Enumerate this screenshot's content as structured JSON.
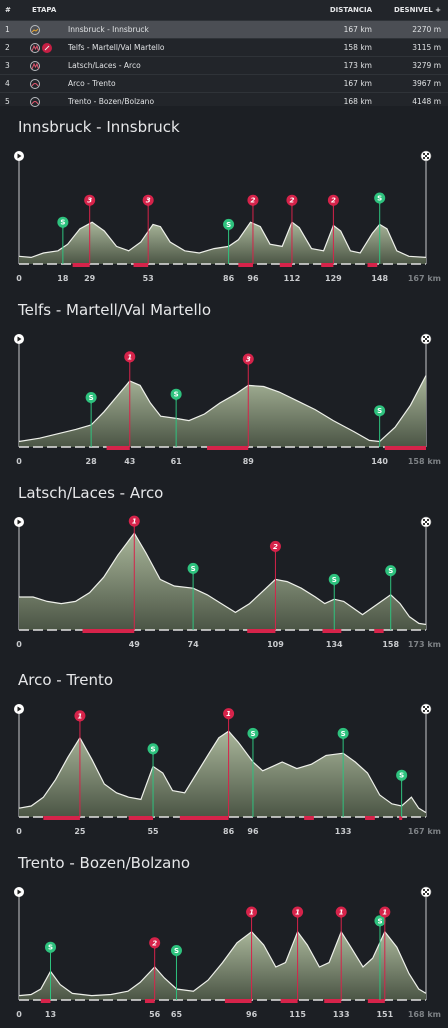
{
  "table": {
    "headers": {
      "num": "#",
      "stage": "ETAPA",
      "distance": "DISTANCIA",
      "elevation": "DESNIVEL +"
    },
    "rows": [
      {
        "num": "1",
        "name": "Innsbruck - Innsbruck",
        "distance": "167 km",
        "elevation": "2270 m",
        "icons": [
          "profile-flat-icon"
        ],
        "selected": true
      },
      {
        "num": "2",
        "name": "Telfs - Martell/Val Martello",
        "distance": "158 km",
        "elevation": "3115 m",
        "icons": [
          "profile-mountain-icon",
          "summit-finish-icon"
        ],
        "selected": false
      },
      {
        "num": "3",
        "name": "Latsch/Laces - Arco",
        "distance": "173 km",
        "elevation": "3279 m",
        "icons": [
          "profile-mountain-icon"
        ],
        "selected": false
      },
      {
        "num": "4",
        "name": "Arco - Trento",
        "distance": "167 km",
        "elevation": "3967 m",
        "icons": [
          "profile-hilly-icon"
        ],
        "selected": false
      },
      {
        "num": "5",
        "name": "Trento - Bozen/Bolzano",
        "distance": "168 km",
        "elevation": "4148 m",
        "icons": [
          "profile-hilly-icon"
        ],
        "selected": false
      }
    ]
  },
  "colors": {
    "kom": "#d6234a",
    "sprint": "#2ec27e",
    "profile_fill": "#7c8a70",
    "background": "#1c1f24"
  },
  "stages": [
    {
      "title": "Innsbruck - Innsbruck",
      "total": 167,
      "total_label": "167 km",
      "ticks": [
        "0",
        "18",
        "29",
        "53",
        "86",
        "96",
        "112",
        "129",
        "148"
      ],
      "tick_km": [
        0,
        18,
        29,
        53,
        86,
        96,
        112,
        129,
        148
      ],
      "profile": [
        [
          0,
          0.07
        ],
        [
          5,
          0.06
        ],
        [
          10,
          0.1
        ],
        [
          16,
          0.12
        ],
        [
          20,
          0.18
        ],
        [
          25,
          0.32
        ],
        [
          30,
          0.38
        ],
        [
          35,
          0.3
        ],
        [
          40,
          0.16
        ],
        [
          45,
          0.12
        ],
        [
          50,
          0.2
        ],
        [
          55,
          0.36
        ],
        [
          58,
          0.34
        ],
        [
          62,
          0.2
        ],
        [
          68,
          0.12
        ],
        [
          74,
          0.1
        ],
        [
          80,
          0.14
        ],
        [
          86,
          0.16
        ],
        [
          90,
          0.22
        ],
        [
          95,
          0.38
        ],
        [
          99,
          0.34
        ],
        [
          103,
          0.18
        ],
        [
          108,
          0.16
        ],
        [
          112,
          0.38
        ],
        [
          115,
          0.33
        ],
        [
          120,
          0.14
        ],
        [
          125,
          0.12
        ],
        [
          129,
          0.35
        ],
        [
          132,
          0.3
        ],
        [
          136,
          0.12
        ],
        [
          140,
          0.1
        ],
        [
          145,
          0.28
        ],
        [
          148,
          0.36
        ],
        [
          151,
          0.32
        ],
        [
          155,
          0.12
        ],
        [
          160,
          0.07
        ],
        [
          167,
          0.06
        ]
      ],
      "markers": [
        {
          "km": 18,
          "type": "sprint",
          "label": "S",
          "h": 0.38
        },
        {
          "km": 29,
          "type": "kom",
          "label": "3",
          "h": 0.58
        },
        {
          "km": 53,
          "type": "kom",
          "label": "3",
          "h": 0.58
        },
        {
          "km": 86,
          "type": "sprint",
          "label": "S",
          "h": 0.36
        },
        {
          "km": 96,
          "type": "kom",
          "label": "2",
          "h": 0.58
        },
        {
          "km": 112,
          "type": "kom",
          "label": "2",
          "h": 0.58
        },
        {
          "km": 129,
          "type": "kom",
          "label": "2",
          "h": 0.58
        },
        {
          "km": 148,
          "type": "sprint",
          "label": "S",
          "h": 0.6
        }
      ],
      "climbs": [
        [
          22,
          29
        ],
        [
          47,
          53
        ],
        [
          90,
          96
        ],
        [
          107,
          112
        ],
        [
          124,
          129
        ],
        [
          143,
          147
        ]
      ]
    },
    {
      "title": "Telfs - Martell/Val Martello",
      "total": 158,
      "total_label": "158 km",
      "ticks": [
        "0",
        "28",
        "43",
        "61",
        "89",
        "140"
      ],
      "tick_km": [
        0,
        28,
        43,
        61,
        89,
        140
      ],
      "profile": [
        [
          0,
          0.05
        ],
        [
          8,
          0.08
        ],
        [
          15,
          0.12
        ],
        [
          22,
          0.16
        ],
        [
          28,
          0.2
        ],
        [
          33,
          0.32
        ],
        [
          38,
          0.46
        ],
        [
          43,
          0.6
        ],
        [
          47,
          0.56
        ],
        [
          51,
          0.4
        ],
        [
          55,
          0.28
        ],
        [
          61,
          0.26
        ],
        [
          66,
          0.24
        ],
        [
          72,
          0.3
        ],
        [
          78,
          0.4
        ],
        [
          84,
          0.48
        ],
        [
          89,
          0.56
        ],
        [
          95,
          0.55
        ],
        [
          101,
          0.5
        ],
        [
          108,
          0.42
        ],
        [
          115,
          0.34
        ],
        [
          122,
          0.24
        ],
        [
          130,
          0.14
        ],
        [
          136,
          0.06
        ],
        [
          140,
          0.05
        ],
        [
          146,
          0.18
        ],
        [
          152,
          0.38
        ],
        [
          158,
          0.65
        ]
      ],
      "markers": [
        {
          "km": 28,
          "type": "sprint",
          "label": "S",
          "h": 0.45
        },
        {
          "km": 43,
          "type": "kom",
          "label": "1",
          "h": 0.82
        },
        {
          "km": 61,
          "type": "sprint",
          "label": "S",
          "h": 0.48
        },
        {
          "km": 89,
          "type": "kom",
          "label": "3",
          "h": 0.8
        },
        {
          "km": 140,
          "type": "sprint",
          "label": "S",
          "h": 0.33
        }
      ],
      "climbs": [
        [
          34,
          43
        ],
        [
          73,
          89
        ],
        [
          142,
          158
        ]
      ]
    },
    {
      "title": "Latsch/Laces - Arco",
      "total": 173,
      "total_label": "173 km",
      "ticks": [
        "0",
        "49",
        "74",
        "109",
        "134",
        "158"
      ],
      "tick_km": [
        0,
        49,
        74,
        109,
        134,
        158
      ],
      "profile": [
        [
          0,
          0.3
        ],
        [
          6,
          0.3
        ],
        [
          12,
          0.26
        ],
        [
          18,
          0.24
        ],
        [
          24,
          0.26
        ],
        [
          30,
          0.34
        ],
        [
          36,
          0.48
        ],
        [
          42,
          0.68
        ],
        [
          49,
          0.88
        ],
        [
          54,
          0.7
        ],
        [
          60,
          0.46
        ],
        [
          66,
          0.4
        ],
        [
          74,
          0.38
        ],
        [
          80,
          0.32
        ],
        [
          86,
          0.24
        ],
        [
          92,
          0.16
        ],
        [
          98,
          0.24
        ],
        [
          104,
          0.36
        ],
        [
          109,
          0.46
        ],
        [
          114,
          0.44
        ],
        [
          120,
          0.38
        ],
        [
          126,
          0.3
        ],
        [
          130,
          0.24
        ],
        [
          134,
          0.28
        ],
        [
          138,
          0.26
        ],
        [
          142,
          0.2
        ],
        [
          146,
          0.14
        ],
        [
          150,
          0.2
        ],
        [
          154,
          0.26
        ],
        [
          158,
          0.32
        ],
        [
          162,
          0.24
        ],
        [
          166,
          0.12
        ],
        [
          170,
          0.06
        ],
        [
          173,
          0.05
        ]
      ],
      "markers": [
        {
          "km": 49,
          "type": "kom",
          "label": "1",
          "h": 0.99
        },
        {
          "km": 74,
          "type": "sprint",
          "label": "S",
          "h": 0.56
        },
        {
          "km": 109,
          "type": "kom",
          "label": "2",
          "h": 0.76
        },
        {
          "km": 134,
          "type": "sprint",
          "label": "S",
          "h": 0.46
        },
        {
          "km": 158,
          "type": "sprint",
          "label": "S",
          "h": 0.54
        }
      ],
      "climbs": [
        [
          27,
          49
        ],
        [
          97,
          109
        ],
        [
          129,
          137
        ],
        [
          151,
          155
        ]
      ]
    },
    {
      "title": "Arco - Trento",
      "total": 167,
      "total_label": "167 km",
      "ticks": [
        "0",
        "25",
        "55",
        "86",
        "96",
        "133"
      ],
      "tick_km": [
        0,
        25,
        55,
        86,
        96,
        133
      ],
      "profile": [
        [
          0,
          0.08
        ],
        [
          5,
          0.1
        ],
        [
          10,
          0.18
        ],
        [
          15,
          0.34
        ],
        [
          20,
          0.54
        ],
        [
          25,
          0.72
        ],
        [
          30,
          0.52
        ],
        [
          35,
          0.3
        ],
        [
          40,
          0.22
        ],
        [
          45,
          0.18
        ],
        [
          50,
          0.16
        ],
        [
          55,
          0.46
        ],
        [
          59,
          0.4
        ],
        [
          63,
          0.24
        ],
        [
          68,
          0.22
        ],
        [
          73,
          0.4
        ],
        [
          78,
          0.58
        ],
        [
          82,
          0.72
        ],
        [
          86,
          0.78
        ],
        [
          90,
          0.68
        ],
        [
          96,
          0.5
        ],
        [
          100,
          0.42
        ],
        [
          104,
          0.46
        ],
        [
          108,
          0.5
        ],
        [
          114,
          0.44
        ],
        [
          120,
          0.48
        ],
        [
          126,
          0.56
        ],
        [
          133,
          0.58
        ],
        [
          138,
          0.5
        ],
        [
          143,
          0.4
        ],
        [
          148,
          0.2
        ],
        [
          153,
          0.12
        ],
        [
          157,
          0.1
        ],
        [
          161,
          0.18
        ],
        [
          164,
          0.08
        ],
        [
          167,
          0.04
        ]
      ],
      "markers": [
        {
          "km": 25,
          "type": "kom",
          "label": "1",
          "h": 0.92
        },
        {
          "km": 55,
          "type": "sprint",
          "label": "S",
          "h": 0.62
        },
        {
          "km": 86,
          "type": "kom",
          "label": "1",
          "h": 0.94
        },
        {
          "km": 96,
          "type": "sprint",
          "label": "S",
          "h": 0.76
        },
        {
          "km": 133,
          "type": "sprint",
          "label": "S",
          "h": 0.76
        },
        {
          "km": 157,
          "type": "sprint",
          "label": "S",
          "h": 0.38
        }
      ],
      "climbs": [
        [
          10,
          25
        ],
        [
          45,
          55
        ],
        [
          66,
          86
        ],
        [
          117,
          121
        ],
        [
          142,
          146
        ],
        [
          156,
          157
        ]
      ]
    },
    {
      "title": "Trento - Bozen/Bolzano",
      "total": 168,
      "total_label": "168 km",
      "ticks": [
        "0",
        "13",
        "56",
        "65",
        "96",
        "115",
        "133",
        "151"
      ],
      "tick_km": [
        0,
        13,
        56,
        65,
        96,
        115,
        133,
        151
      ],
      "profile": [
        [
          0,
          0.04
        ],
        [
          5,
          0.05
        ],
        [
          9,
          0.1
        ],
        [
          13,
          0.26
        ],
        [
          17,
          0.14
        ],
        [
          22,
          0.06
        ],
        [
          30,
          0.04
        ],
        [
          38,
          0.05
        ],
        [
          45,
          0.08
        ],
        [
          50,
          0.16
        ],
        [
          56,
          0.3
        ],
        [
          60,
          0.2
        ],
        [
          65,
          0.1
        ],
        [
          72,
          0.08
        ],
        [
          78,
          0.18
        ],
        [
          84,
          0.34
        ],
        [
          90,
          0.52
        ],
        [
          96,
          0.62
        ],
        [
          101,
          0.5
        ],
        [
          106,
          0.3
        ],
        [
          110,
          0.34
        ],
        [
          115,
          0.62
        ],
        [
          119,
          0.5
        ],
        [
          124,
          0.3
        ],
        [
          128,
          0.34
        ],
        [
          133,
          0.62
        ],
        [
          137,
          0.48
        ],
        [
          142,
          0.3
        ],
        [
          146,
          0.38
        ],
        [
          151,
          0.62
        ],
        [
          156,
          0.48
        ],
        [
          161,
          0.24
        ],
        [
          165,
          0.1
        ],
        [
          168,
          0.06
        ]
      ],
      "markers": [
        {
          "km": 13,
          "type": "sprint",
          "label": "S",
          "h": 0.48
        },
        {
          "km": 56,
          "type": "kom",
          "label": "2",
          "h": 0.52
        },
        {
          "km": 65,
          "type": "sprint",
          "label": "S",
          "h": 0.45
        },
        {
          "km": 96,
          "type": "kom",
          "label": "1",
          "h": 0.8
        },
        {
          "km": 115,
          "type": "kom",
          "label": "1",
          "h": 0.8
        },
        {
          "km": 133,
          "type": "kom",
          "label": "1",
          "h": 0.8
        },
        {
          "km": 149,
          "type": "sprint",
          "label": "S",
          "h": 0.72
        },
        {
          "km": 151,
          "type": "kom",
          "label": "1",
          "h": 0.8
        }
      ],
      "climbs": [
        [
          9,
          13
        ],
        [
          52,
          56
        ],
        [
          85,
          96
        ],
        [
          108,
          115
        ],
        [
          126,
          133
        ],
        [
          144,
          151
        ]
      ]
    }
  ]
}
